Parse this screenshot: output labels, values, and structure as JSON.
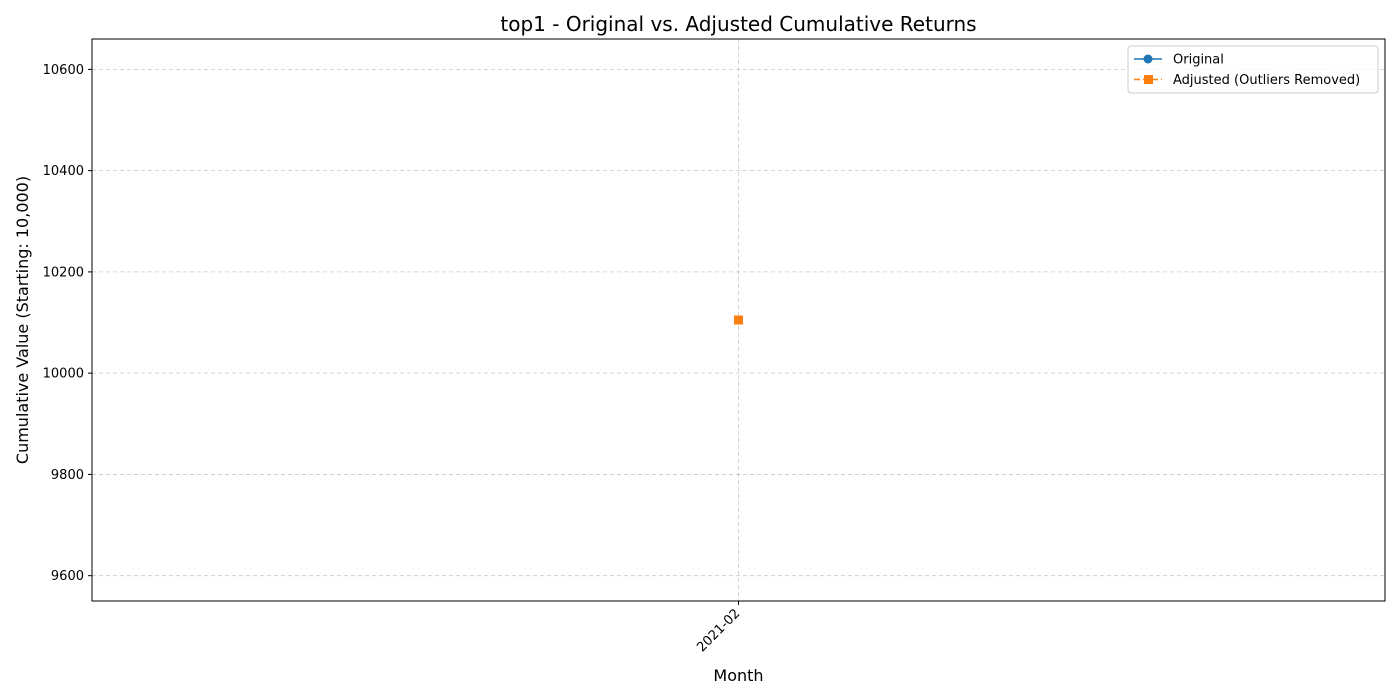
{
  "chart_data": {
    "type": "line",
    "title": "top1 - Original vs. Adjusted Cumulative Returns",
    "xlabel": "Month",
    "ylabel": "Cumulative Value (Starting: 10,000)",
    "x": [
      "2021-02"
    ],
    "ylim": [
      9550,
      10660
    ],
    "yticks": [
      9600,
      9800,
      10000,
      10200,
      10400,
      10600
    ],
    "grid": true,
    "legend_position": "upper right",
    "series": [
      {
        "name": "Original",
        "values": [
          10105
        ],
        "color": "#1f77b4",
        "marker": "circle",
        "line_style": "solid"
      },
      {
        "name": "Adjusted (Outliers Removed)",
        "values": [
          10105
        ],
        "color": "#ff7f0e",
        "marker": "square",
        "line_style": "dashed"
      }
    ]
  }
}
